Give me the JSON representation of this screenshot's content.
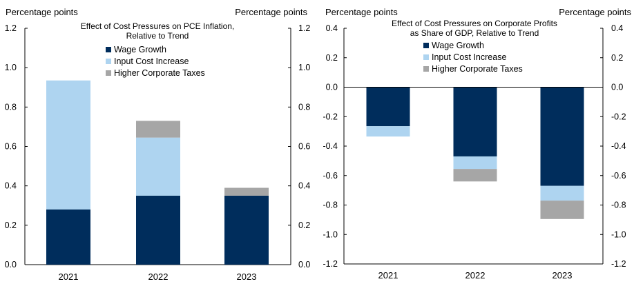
{
  "chart_data": [
    {
      "type": "bar",
      "stacked": true,
      "title": "Effect of Cost Pressures on PCE Inflation,",
      "subtitle": "Relative to Trend",
      "ylabel_left": "Percentage points",
      "ylabel_right": "Percentage points",
      "categories": [
        "2021",
        "2022",
        "2023"
      ],
      "ylim": [
        0,
        1.2
      ],
      "yticks": [
        0.0,
        0.2,
        0.4,
        0.6,
        0.8,
        1.0,
        1.2
      ],
      "ytick_labels": [
        "0.0",
        "0.2",
        "0.4",
        "0.6",
        "0.8",
        "1.0",
        "1.2"
      ],
      "legend_position": "top-center",
      "series": [
        {
          "name": "Wage Growth",
          "color": "#002d5c",
          "values": [
            0.28,
            0.35,
            0.35
          ]
        },
        {
          "name": "Input Cost Increase",
          "color": "#aed4f0",
          "values": [
            0.655,
            0.295,
            0.0
          ]
        },
        {
          "name": "Higher Corporate Taxes",
          "color": "#a6a6a6",
          "values": [
            0.0,
            0.085,
            0.04
          ]
        }
      ]
    },
    {
      "type": "bar",
      "stacked": true,
      "title": "Effect of Cost Pressures on Corporate Profits",
      "subtitle": "as Share of GDP, Relative to Trend",
      "ylabel_left": "Percentage points",
      "ylabel_right": "Percentage points",
      "categories": [
        "2021",
        "2022",
        "2023"
      ],
      "ylim": [
        -1.2,
        0.4
      ],
      "yticks": [
        -1.2,
        -1.0,
        -0.8,
        -0.6,
        -0.4,
        -0.2,
        0.0,
        0.2,
        0.4
      ],
      "ytick_labels": [
        "-1.2",
        "-1.0",
        "-0.8",
        "-0.6",
        "-0.4",
        "-0.2",
        "0.0",
        "0.2",
        "0.4"
      ],
      "legend_position": "top-center",
      "series": [
        {
          "name": "Wage Growth",
          "color": "#002d5c",
          "values": [
            -0.265,
            -0.47,
            -0.67
          ]
        },
        {
          "name": "Input Cost Increase",
          "color": "#aed4f0",
          "values": [
            -0.07,
            -0.085,
            -0.1
          ]
        },
        {
          "name": "Higher Corporate Taxes",
          "color": "#a6a6a6",
          "values": [
            0.0,
            -0.085,
            -0.125
          ]
        }
      ]
    }
  ]
}
